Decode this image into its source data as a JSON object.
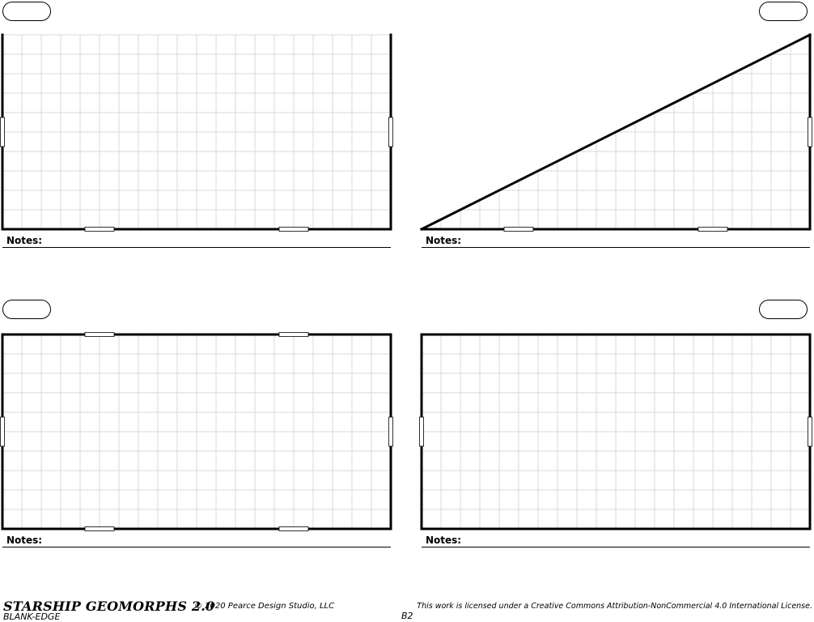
{
  "panels": [
    {
      "notes_label": "Notes:"
    },
    {
      "notes_label": "Notes:"
    },
    {
      "notes_label": "Notes:"
    },
    {
      "notes_label": "Notes:"
    }
  ],
  "footer": {
    "title": "STARSHIP GEOMORPHS 2.0",
    "copyright": "© 2020   Pearce Design Studio, LLC",
    "subtitle": "BLANK-EDGE",
    "license": "This work is licensed under a Creative Commons Attribution-NonCommercial 4.0 International License.",
    "page_id": "B2"
  },
  "colors": {
    "grid": "#d9d9d9",
    "wall": "#000000",
    "background": "#ffffff"
  }
}
